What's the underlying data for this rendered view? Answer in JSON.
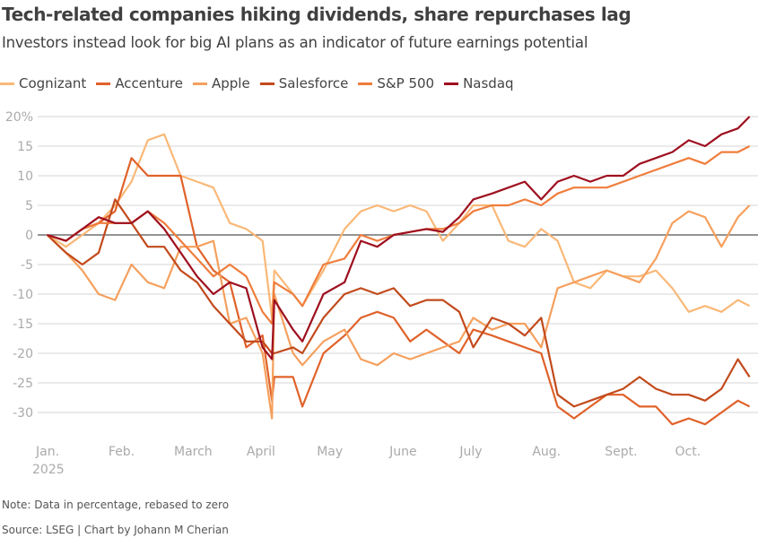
{
  "title": "Tech-related companies hiking dividends, share repurchases lag",
  "subtitle": "Investors instead look for big AI plans as an indicator of future earnings potential",
  "note": "Note: Data in percentage, rebased to zero",
  "source": "Source: LSEG | Chart by Johann M Cherian",
  "chart_data": {
    "type": "line",
    "title": "Tech-related companies hiking dividends, share repurchases lag",
    "subtitle": "Investors instead look for big AI plans as an indicator of future earnings potential",
    "xlabel": "",
    "ylabel": "",
    "ylim": [
      -30,
      20
    ],
    "yticks": [
      20,
      15,
      10,
      5,
      0,
      -5,
      -10,
      -15,
      -20,
      -25,
      -30
    ],
    "ytick_labels": [
      "20%",
      "15",
      "10",
      "5",
      "0",
      "-5",
      "-10",
      "-15",
      "-20",
      "-25",
      "-30"
    ],
    "xticks": [
      {
        "date": "2025-01-01",
        "label": "Jan.",
        "sublabel": "2025"
      },
      {
        "date": "2025-02-01",
        "label": "Feb."
      },
      {
        "date": "2025-03-01",
        "label": "March"
      },
      {
        "date": "2025-04-01",
        "label": "April"
      },
      {
        "date": "2025-05-01",
        "label": "May"
      },
      {
        "date": "2025-06-01",
        "label": "June"
      },
      {
        "date": "2025-07-01",
        "label": "July"
      },
      {
        "date": "2025-08-01",
        "label": "Aug."
      },
      {
        "date": "2025-09-01",
        "label": "Sept."
      },
      {
        "date": "2025-10-01",
        "label": "Oct."
      }
    ],
    "grid": true,
    "legend": "top",
    "x": [
      "2025-01-02",
      "2025-01-10",
      "2025-01-17",
      "2025-01-24",
      "2025-01-31",
      "2025-02-07",
      "2025-02-14",
      "2025-02-21",
      "2025-02-28",
      "2025-03-07",
      "2025-03-14",
      "2025-03-21",
      "2025-03-28",
      "2025-04-04",
      "2025-04-08",
      "2025-04-09",
      "2025-04-17",
      "2025-04-21",
      "2025-04-30",
      "2025-05-09",
      "2025-05-16",
      "2025-05-23",
      "2025-05-30",
      "2025-06-06",
      "2025-06-13",
      "2025-06-20",
      "2025-06-27",
      "2025-07-03",
      "2025-07-11",
      "2025-07-18",
      "2025-07-25",
      "2025-08-01",
      "2025-08-08",
      "2025-08-15",
      "2025-08-22",
      "2025-08-29",
      "2025-09-05",
      "2025-09-12",
      "2025-09-19",
      "2025-09-26",
      "2025-10-03",
      "2025-10-10",
      "2025-10-17",
      "2025-10-24",
      "2025-10-29"
    ],
    "series": [
      {
        "name": "Cognizant",
        "color": "#f9b877",
        "values": [
          0,
          -2,
          0,
          2,
          5,
          9,
          16,
          17,
          10,
          9,
          8,
          2,
          1,
          -1,
          -14,
          -6,
          -10,
          -12,
          -6,
          1,
          4,
          5,
          4,
          5,
          4,
          -1,
          2,
          5,
          5,
          -1,
          -2,
          1,
          -1,
          -8,
          -9,
          -6,
          -7,
          -7,
          -6,
          -9,
          -13,
          -12,
          -13,
          -11,
          -12
        ]
      },
      {
        "name": "Accenture",
        "color": "#e0622a",
        "values": [
          0,
          -1,
          1,
          2,
          4,
          13,
          10,
          10,
          10,
          -2,
          -6,
          -8,
          -19,
          -17,
          -28,
          -24,
          -24,
          -29,
          -20,
          -17,
          -14,
          -13,
          -14,
          -18,
          -16,
          -18,
          -20,
          -16,
          -17,
          -18,
          -19,
          -20,
          -29,
          -31,
          -29,
          -27,
          -27,
          -29,
          -29,
          -32,
          -31,
          -32,
          -30,
          -28,
          -29
        ]
      },
      {
        "name": "Apple",
        "color": "#f5a05e",
        "values": [
          0,
          -3,
          -6,
          -10,
          -11,
          -5,
          -8,
          -9,
          -2,
          -2,
          -1,
          -15,
          -14,
          -20,
          -31,
          -10,
          -20,
          -22,
          -18,
          -16,
          -21,
          -22,
          -20,
          -21,
          -20,
          -19,
          -18,
          -14,
          -16,
          -15,
          -15,
          -19,
          -9,
          -8,
          -7,
          -6,
          -7,
          -8,
          -4,
          2,
          4,
          3,
          -2,
          3,
          5
        ]
      },
      {
        "name": "Salesforce",
        "color": "#c24a1c",
        "values": [
          0,
          -3,
          -5,
          -3,
          6,
          2,
          -2,
          -2,
          -6,
          -8,
          -12,
          -15,
          -18,
          -18,
          -20,
          -20,
          -19,
          -20,
          -14,
          -10,
          -9,
          -10,
          -9,
          -12,
          -11,
          -11,
          -13,
          -19,
          -14,
          -15,
          -17,
          -14,
          -27,
          -29,
          -28,
          -27,
          -26,
          -24,
          -26,
          -27,
          -27,
          -28,
          -26,
          -21,
          -24
        ]
      },
      {
        "name": "S&P 500",
        "color": "#ef7d3c",
        "values": [
          0,
          -1,
          1,
          2,
          2,
          2,
          4,
          2,
          -1,
          -4,
          -7,
          -5,
          -7,
          -13,
          -15,
          -8,
          -10,
          -12,
          -5,
          -4,
          0,
          -1,
          0,
          0.5,
          1,
          1,
          2,
          4,
          5,
          5,
          6,
          5,
          7,
          8,
          8,
          8,
          9,
          10,
          11,
          12,
          13,
          12,
          14,
          14,
          15
        ]
      },
      {
        "name": "Nasdaq",
        "color": "#9e0f1f",
        "values": [
          0,
          -1,
          1,
          3,
          2,
          2,
          4,
          1,
          -3,
          -7,
          -10,
          -8,
          -9,
          -19,
          -21,
          -11,
          -16,
          -18,
          -10,
          -8,
          -1,
          -2,
          0,
          0.5,
          1,
          0.5,
          3,
          6,
          7,
          8,
          9,
          6,
          9,
          10,
          9,
          10,
          10,
          12,
          13,
          14,
          16,
          15,
          17,
          18,
          20
        ]
      }
    ]
  }
}
